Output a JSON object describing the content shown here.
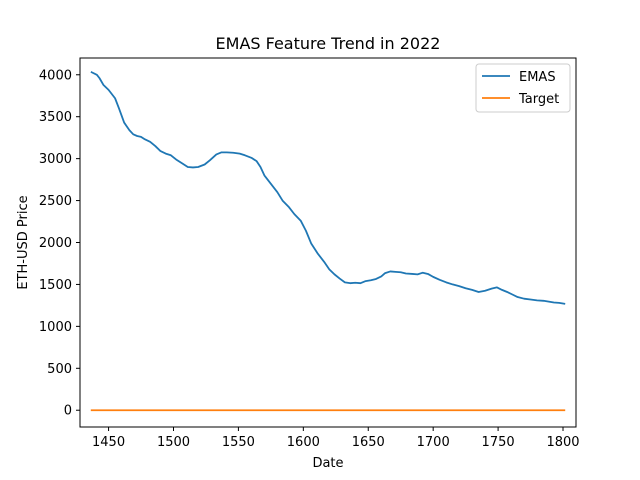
{
  "chart_data": {
    "type": "line",
    "title": "EMAS Feature Trend in 2022",
    "xlabel": "Date",
    "ylabel": "ETH-USD Price",
    "xlim": [
      1428,
      1810
    ],
    "ylim": [
      -200,
      4200
    ],
    "xticks": [
      1450,
      1500,
      1550,
      1600,
      1650,
      1700,
      1750,
      1800
    ],
    "yticks": [
      0,
      500,
      1000,
      1500,
      2000,
      2500,
      3000,
      3500,
      4000
    ],
    "grid": false,
    "legend_position": "top-right",
    "series": [
      {
        "name": "EMAS",
        "color": "#1f77b4",
        "points": [
          [
            1437,
            4030
          ],
          [
            1441,
            4000
          ],
          [
            1443,
            3960
          ],
          [
            1446,
            3880
          ],
          [
            1450,
            3820
          ],
          [
            1455,
            3720
          ],
          [
            1458,
            3600
          ],
          [
            1462,
            3430
          ],
          [
            1466,
            3340
          ],
          [
            1469,
            3290
          ],
          [
            1472,
            3270
          ],
          [
            1475,
            3260
          ],
          [
            1478,
            3230
          ],
          [
            1482,
            3200
          ],
          [
            1486,
            3150
          ],
          [
            1490,
            3090
          ],
          [
            1494,
            3060
          ],
          [
            1498,
            3040
          ],
          [
            1502,
            2990
          ],
          [
            1507,
            2940
          ],
          [
            1511,
            2900
          ],
          [
            1515,
            2895
          ],
          [
            1519,
            2900
          ],
          [
            1524,
            2930
          ],
          [
            1528,
            2980
          ],
          [
            1533,
            3050
          ],
          [
            1537,
            3075
          ],
          [
            1541,
            3075
          ],
          [
            1546,
            3070
          ],
          [
            1551,
            3060
          ],
          [
            1555,
            3040
          ],
          [
            1560,
            3010
          ],
          [
            1564,
            2970
          ],
          [
            1567,
            2900
          ],
          [
            1570,
            2800
          ],
          [
            1575,
            2700
          ],
          [
            1580,
            2600
          ],
          [
            1584,
            2500
          ],
          [
            1589,
            2420
          ],
          [
            1593,
            2340
          ],
          [
            1598,
            2260
          ],
          [
            1602,
            2140
          ],
          [
            1606,
            1990
          ],
          [
            1611,
            1870
          ],
          [
            1616,
            1770
          ],
          [
            1620,
            1680
          ],
          [
            1624,
            1620
          ],
          [
            1628,
            1570
          ],
          [
            1632,
            1525
          ],
          [
            1636,
            1515
          ],
          [
            1640,
            1520
          ],
          [
            1644,
            1515
          ],
          [
            1648,
            1540
          ],
          [
            1652,
            1550
          ],
          [
            1656,
            1565
          ],
          [
            1660,
            1595
          ],
          [
            1663,
            1635
          ],
          [
            1667,
            1655
          ],
          [
            1671,
            1650
          ],
          [
            1675,
            1645
          ],
          [
            1679,
            1630
          ],
          [
            1684,
            1625
          ],
          [
            1688,
            1620
          ],
          [
            1692,
            1640
          ],
          [
            1696,
            1625
          ],
          [
            1700,
            1590
          ],
          [
            1705,
            1555
          ],
          [
            1710,
            1525
          ],
          [
            1715,
            1500
          ],
          [
            1720,
            1480
          ],
          [
            1725,
            1455
          ],
          [
            1730,
            1435
          ],
          [
            1735,
            1410
          ],
          [
            1740,
            1425
          ],
          [
            1745,
            1450
          ],
          [
            1749,
            1465
          ],
          [
            1753,
            1435
          ],
          [
            1757,
            1410
          ],
          [
            1761,
            1380
          ],
          [
            1765,
            1350
          ],
          [
            1770,
            1330
          ],
          [
            1775,
            1320
          ],
          [
            1780,
            1310
          ],
          [
            1785,
            1305
          ],
          [
            1789,
            1295
          ],
          [
            1793,
            1285
          ],
          [
            1797,
            1280
          ],
          [
            1801,
            1270
          ]
        ]
      },
      {
        "name": "Target",
        "color": "#ff7f0e",
        "points": [
          [
            1437,
            0
          ],
          [
            1801,
            0
          ]
        ]
      }
    ]
  }
}
